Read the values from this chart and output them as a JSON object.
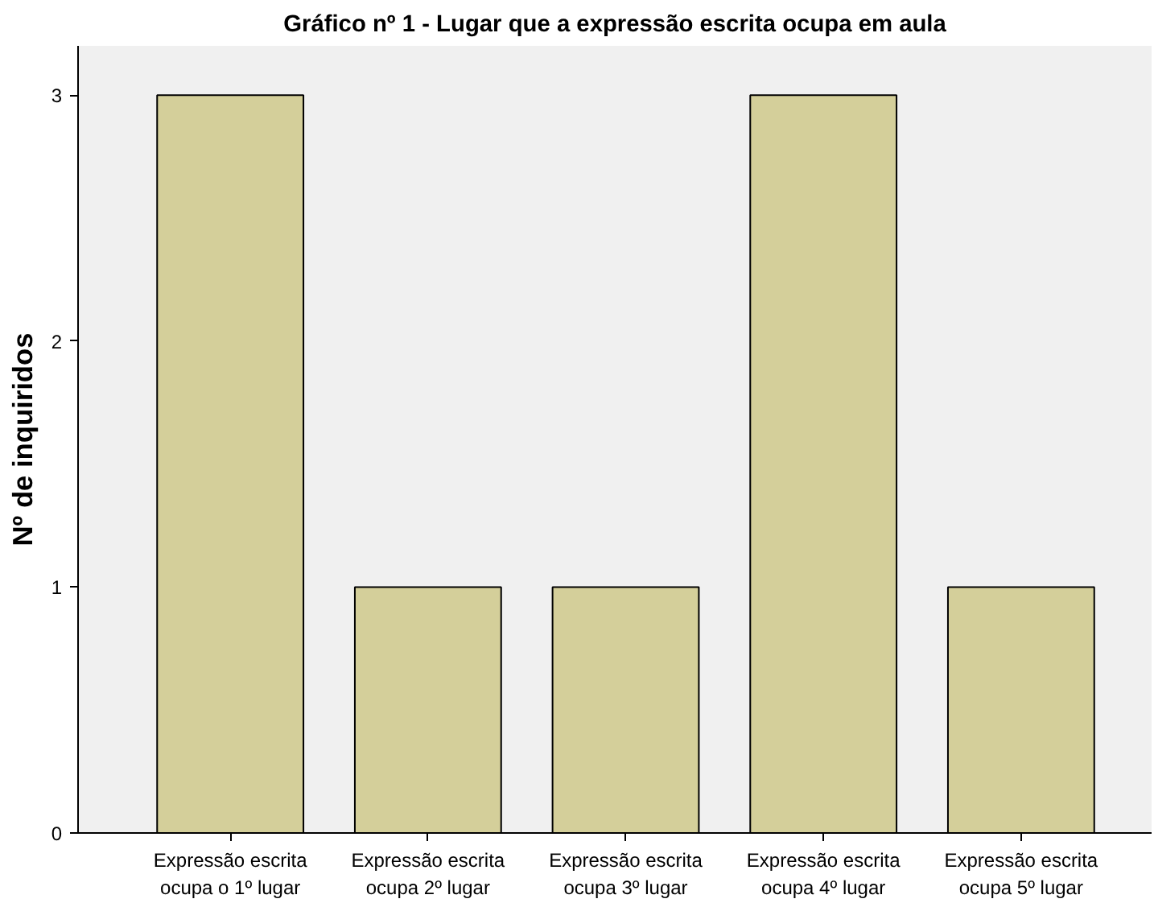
{
  "chart_data": {
    "type": "bar",
    "title": "Gráfico nº 1 - Lugar que a expressão escrita ocupa em aula",
    "ylabel": "Nº de inquiridos",
    "categories": [
      "Expressão escrita\nocupa o 1º lugar",
      "Expressão escrita\nocupa 2º lugar",
      "Expressão escrita\nocupa 3º lugar",
      "Expressão escrita\nocupa 4º lugar",
      "Expressão escrita\nocupa 5º lugar"
    ],
    "values": [
      3,
      1,
      1,
      3,
      1
    ],
    "color": "#d4cf9a",
    "ylim": [
      0,
      3.2
    ],
    "yticks": [
      0,
      1,
      2,
      3
    ],
    "grid": false
  }
}
